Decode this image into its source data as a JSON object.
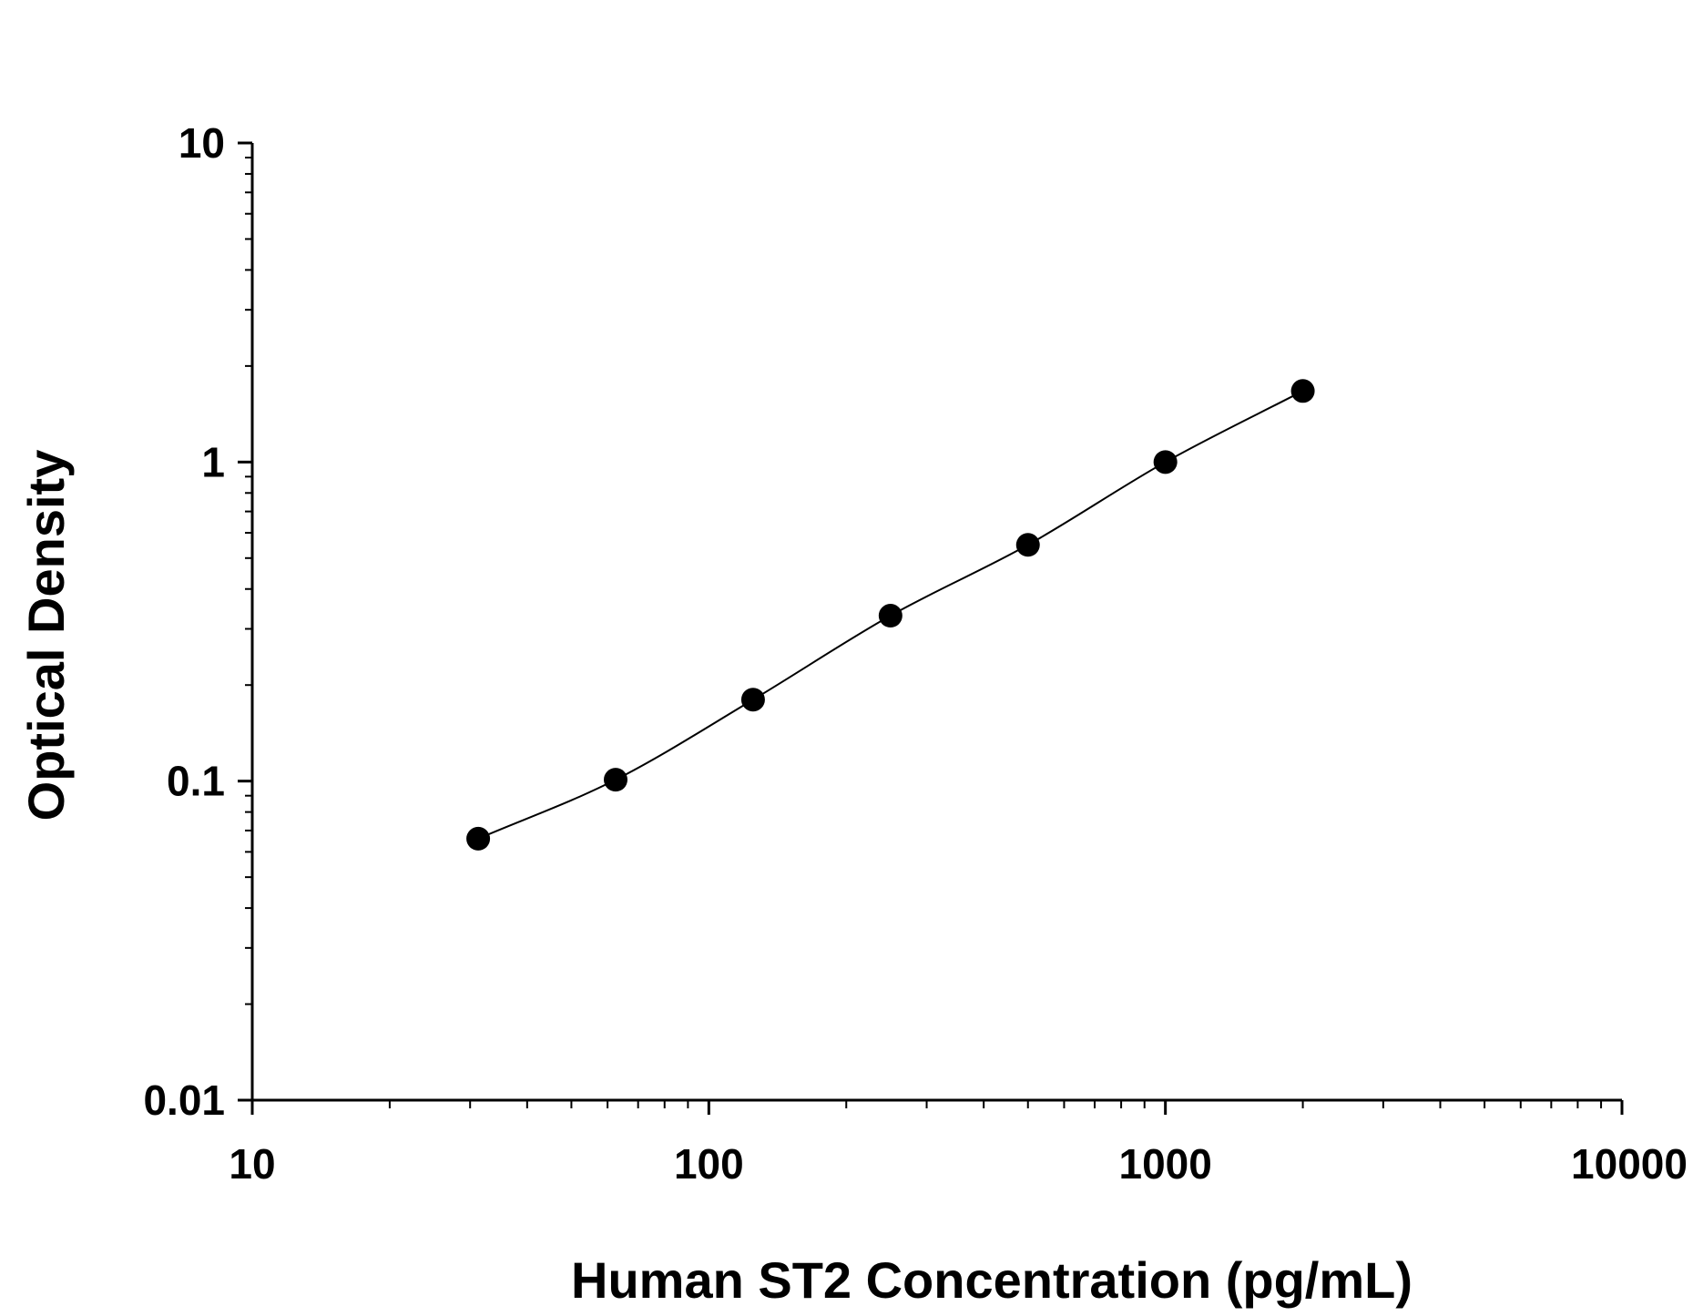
{
  "chart_data": {
    "type": "scatter",
    "title": "",
    "xlabel": "Human ST2 Concentration (pg/mL)",
    "ylabel": "Optical Density",
    "x_scale": "log",
    "y_scale": "log",
    "xlim": [
      10,
      10000
    ],
    "ylim": [
      0.01,
      10
    ],
    "x_ticks": [
      "10",
      "100",
      "1000",
      "10000"
    ],
    "y_ticks": [
      "0.01",
      "0.1",
      "1",
      "10"
    ],
    "grid": false,
    "legend": "none",
    "series": [
      {
        "points": [
          {
            "x": 31.25,
            "y": 0.066
          },
          {
            "x": 62.5,
            "y": 0.101
          },
          {
            "x": 125,
            "y": 0.18
          },
          {
            "x": 250,
            "y": 0.33
          },
          {
            "x": 500,
            "y": 0.55
          },
          {
            "x": 1000,
            "y": 1.0
          },
          {
            "x": 2000,
            "y": 1.67
          }
        ]
      }
    ],
    "fit_curve": true,
    "colors": {
      "marker": "#000000",
      "line": "#000000",
      "axis": "#000000"
    }
  }
}
